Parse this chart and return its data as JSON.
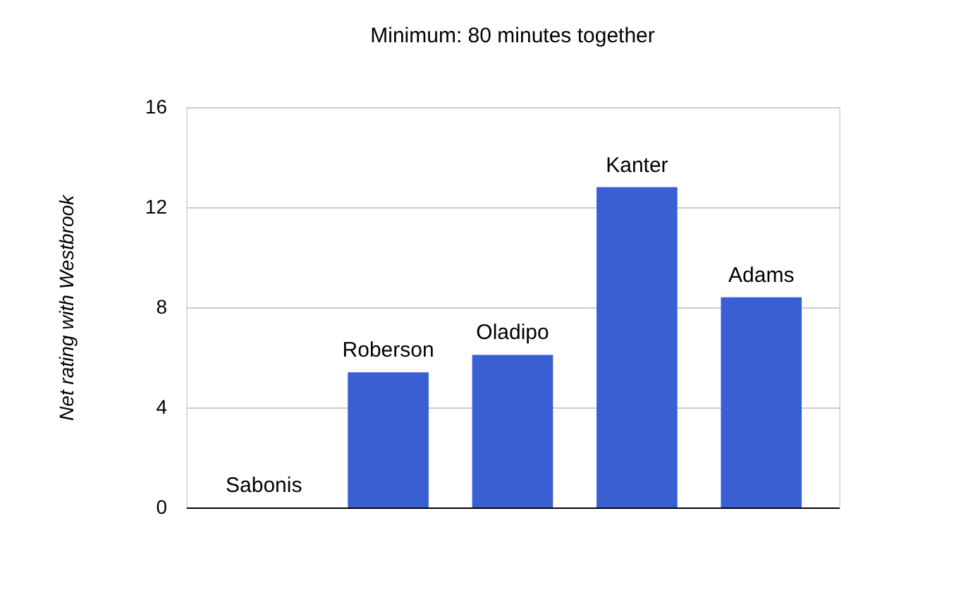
{
  "chart_data": {
    "type": "bar",
    "title": "Minimum: 80 minutes together",
    "ylabel": "Net rating with Westbrook",
    "categories": [
      "Sabonis",
      "Roberson",
      "Oladipo",
      "Kanter",
      "Adams"
    ],
    "series": [
      {
        "color": "#3a5fd3",
        "values": [
          0,
          5.4,
          6.1,
          12.8,
          8.4
        ]
      }
    ],
    "ylim": [
      0,
      16
    ],
    "yticks": [
      0,
      4,
      8,
      12,
      16
    ],
    "grid": "y",
    "tick_labels": "y"
  }
}
